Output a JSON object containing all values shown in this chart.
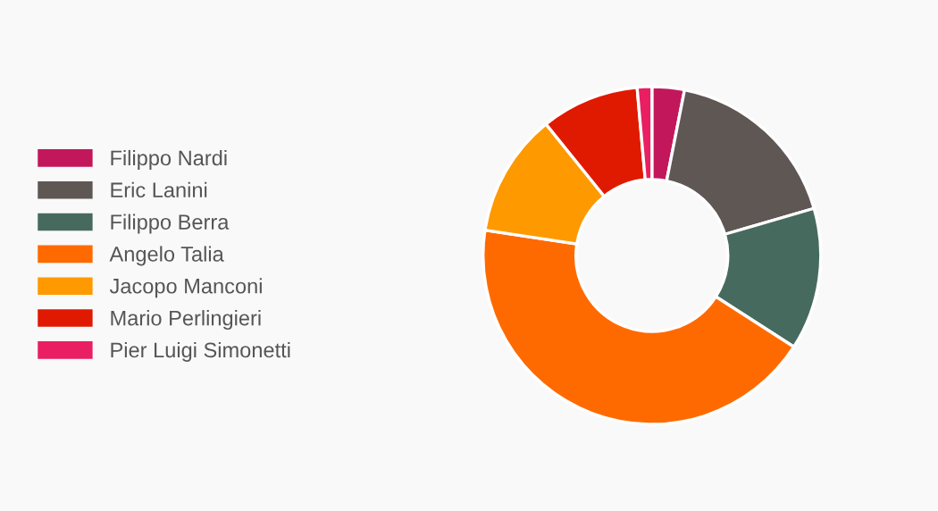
{
  "chart_data": {
    "type": "donut",
    "categories": [
      "Filippo Nardi",
      "Eric Lanini",
      "Filippo Berra",
      "Angelo Talia",
      "Jacopo Manconi",
      "Mario Perlingieri",
      "Pier Luigi Simonetti"
    ],
    "values": [
      3.1,
      17.4,
      13.6,
      43.3,
      11.8,
      9.4,
      1.4
    ],
    "colors": [
      "#c2185b",
      "#5f5754",
      "#476a5f",
      "#ff6a00",
      "#ff9900",
      "#e01a00",
      "#e91e63"
    ],
    "legend": "left"
  }
}
